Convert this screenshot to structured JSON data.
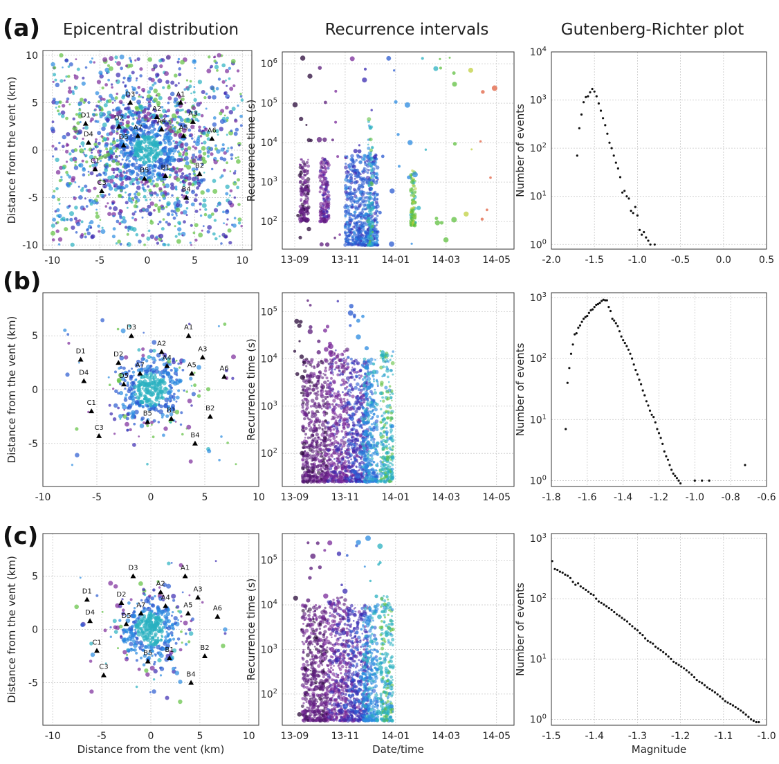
{
  "column_titles": [
    "Epicentral distribution",
    "Recurrence intervals",
    "Gutenberg-Richter plot"
  ],
  "row_labels": [
    "(a)",
    "(b)",
    "(c)"
  ],
  "chart_data": [
    {
      "panel": "a-epicentral",
      "type": "scatter",
      "xlabel": "",
      "ylabel": "Distance from the vent (km)",
      "xlim": [
        -11,
        11
      ],
      "ylim": [
        -10.5,
        10.5
      ],
      "xticks": [
        "-10",
        "-5",
        "0",
        "5",
        "10"
      ],
      "yticks": [
        "10",
        "5",
        "0",
        "-5",
        "-10"
      ],
      "points_note": "several thousand colored epicenter markers clustered around (0, 0), spread over the full ±10 km window"
    },
    {
      "panel": "a-recurrence",
      "type": "scatter",
      "xlabel": "",
      "ylabel": "Recurrence time (s)",
      "log_y": true,
      "xticks": [
        "13-09",
        "13-11",
        "14-01",
        "14-03",
        "14-05"
      ],
      "yticks": [
        "10^6",
        "10^5",
        "10^4",
        "10^3",
        "10^2"
      ]
    },
    {
      "panel": "a-gutenberg",
      "type": "scatter",
      "xlabel": "",
      "ylabel": "Number of events",
      "log_y": true,
      "xlim": [
        -2.0,
        0.5
      ],
      "ylim": [
        0.8,
        10000
      ],
      "xticks": [
        "-2.0",
        "-1.5",
        "-1.0",
        "-0.5",
        "0.0",
        "0.5"
      ],
      "yticks": [
        "10^4",
        "10^3",
        "10^2",
        "10^1",
        "10^0"
      ],
      "points": [
        [
          -1.7,
          70
        ],
        [
          -1.675,
          260
        ],
        [
          -1.65,
          500
        ],
        [
          -1.625,
          900
        ],
        [
          -1.6,
          1150
        ],
        [
          -1.575,
          1200
        ],
        [
          -1.55,
          1450
        ],
        [
          -1.525,
          1700
        ],
        [
          -1.5,
          1500
        ],
        [
          -1.475,
          1200
        ],
        [
          -1.45,
          850
        ],
        [
          -1.425,
          600
        ],
        [
          -1.4,
          420
        ],
        [
          -1.375,
          300
        ],
        [
          -1.35,
          200
        ],
        [
          -1.325,
          130
        ],
        [
          -1.3,
          100
        ],
        [
          -1.275,
          70
        ],
        [
          -1.25,
          50
        ],
        [
          -1.225,
          38
        ],
        [
          -1.2,
          25
        ],
        [
          -1.175,
          12
        ],
        [
          -1.15,
          13
        ],
        [
          -1.125,
          10
        ],
        [
          -1.1,
          9
        ],
        [
          -1.075,
          5
        ],
        [
          -1.05,
          4.5
        ],
        [
          -1.025,
          6
        ],
        [
          -1.0,
          4
        ],
        [
          -0.975,
          2
        ],
        [
          -0.95,
          1.6
        ],
        [
          -0.925,
          1.8
        ],
        [
          -0.9,
          1.4
        ],
        [
          -0.875,
          1.2
        ],
        [
          -0.85,
          1.0
        ],
        [
          -0.8,
          1.0
        ]
      ]
    },
    {
      "panel": "b-epicentral",
      "type": "scatter",
      "xlabel": "",
      "ylabel": "Distance from the vent (km)",
      "xlim": [
        -10,
        10
      ],
      "ylim": [
        -9,
        9
      ],
      "xticks": [
        "-10",
        "-5",
        "0",
        "5",
        "10"
      ],
      "yticks": [
        "5",
        "0",
        "-5"
      ]
    },
    {
      "panel": "b-recurrence",
      "type": "scatter",
      "xlabel": "",
      "ylabel": "Recurrence time (s)",
      "log_y": true,
      "xticks": [
        "13-09",
        "13-11",
        "14-01",
        "14-03",
        "14-05"
      ],
      "yticks": [
        "10^5",
        "10^4",
        "10^3",
        "10^2"
      ]
    },
    {
      "panel": "b-gutenberg",
      "type": "scatter",
      "xlabel": "",
      "ylabel": "Number of events",
      "log_y": true,
      "xlim": [
        -1.8,
        -0.6
      ],
      "ylim": [
        0.8,
        1200
      ],
      "xticks": [
        "-1.8",
        "-1.6",
        "-1.4",
        "-1.2",
        "-1.0",
        "-0.8",
        "-0.6"
      ],
      "yticks": [
        "10^3",
        "10^2",
        "10^1",
        "10^0"
      ],
      "points": [
        [
          -1.72,
          7
        ],
        [
          -1.71,
          40
        ],
        [
          -1.7,
          70
        ],
        [
          -1.69,
          120
        ],
        [
          -1.68,
          170
        ],
        [
          -1.67,
          250
        ],
        [
          -1.66,
          260
        ],
        [
          -1.65,
          320
        ],
        [
          -1.64,
          350
        ],
        [
          -1.63,
          400
        ],
        [
          -1.62,
          450
        ],
        [
          -1.61,
          480
        ],
        [
          -1.6,
          500
        ],
        [
          -1.59,
          560
        ],
        [
          -1.58,
          620
        ],
        [
          -1.57,
          640
        ],
        [
          -1.56,
          700
        ],
        [
          -1.55,
          760
        ],
        [
          -1.54,
          780
        ],
        [
          -1.53,
          820
        ],
        [
          -1.52,
          880
        ],
        [
          -1.51,
          920
        ],
        [
          -1.5,
          900
        ],
        [
          -1.49,
          900
        ],
        [
          -1.48,
          700
        ],
        [
          -1.47,
          600
        ],
        [
          -1.46,
          450
        ],
        [
          -1.45,
          420
        ],
        [
          -1.44,
          380
        ],
        [
          -1.43,
          340
        ],
        [
          -1.42,
          280
        ],
        [
          -1.41,
          230
        ],
        [
          -1.4,
          200
        ],
        [
          -1.39,
          180
        ],
        [
          -1.38,
          160
        ],
        [
          -1.37,
          140
        ],
        [
          -1.36,
          120
        ],
        [
          -1.35,
          100
        ],
        [
          -1.34,
          80
        ],
        [
          -1.33,
          65
        ],
        [
          -1.32,
          55
        ],
        [
          -1.31,
          45
        ],
        [
          -1.3,
          38
        ],
        [
          -1.29,
          30
        ],
        [
          -1.28,
          25
        ],
        [
          -1.27,
          20
        ],
        [
          -1.26,
          17
        ],
        [
          -1.25,
          14
        ],
        [
          -1.24,
          12
        ],
        [
          -1.23,
          11
        ],
        [
          -1.22,
          9
        ],
        [
          -1.21,
          7
        ],
        [
          -1.2,
          6
        ],
        [
          -1.19,
          5
        ],
        [
          -1.18,
          4
        ],
        [
          -1.17,
          3
        ],
        [
          -1.16,
          2.5
        ],
        [
          -1.15,
          2.2
        ],
        [
          -1.14,
          1.8
        ],
        [
          -1.13,
          1.5
        ],
        [
          -1.12,
          1.3
        ],
        [
          -1.11,
          1.2
        ],
        [
          -1.1,
          1.1
        ],
        [
          -1.09,
          1.0
        ],
        [
          -1.08,
          0.9
        ],
        [
          -1.0,
          1.0
        ],
        [
          -0.96,
          1.0
        ],
        [
          -0.92,
          1.0
        ],
        [
          -0.72,
          1.8
        ]
      ]
    },
    {
      "panel": "c-epicentral",
      "type": "scatter",
      "xlabel": "Distance from the vent (km)",
      "ylabel": "Distance from the vent (km)",
      "xlim": [
        -11,
        11
      ],
      "ylim": [
        -9,
        9
      ],
      "xticks": [
        "-10",
        "-5",
        "0",
        "5",
        "10"
      ],
      "yticks": [
        "5",
        "0",
        "-5"
      ]
    },
    {
      "panel": "c-recurrence",
      "type": "scatter",
      "xlabel": "Date/time",
      "ylabel": "Recurrence time (s)",
      "log_y": true,
      "xticks": [
        "13-09",
        "13-11",
        "14-01",
        "14-03",
        "14-05"
      ],
      "yticks": [
        "10^5",
        "10^4",
        "10^3",
        "10^2"
      ]
    },
    {
      "panel": "c-gutenberg",
      "type": "scatter",
      "xlabel": "Magnitude",
      "ylabel": "Number of events",
      "log_y": true,
      "xlim": [
        -1.5,
        -1.0
      ],
      "ylim": [
        0.8,
        1200
      ],
      "xticks": [
        "-1.5",
        "-1.4",
        "-1.3",
        "-1.2",
        "-1.1",
        "-1.0"
      ],
      "yticks": [
        "10^3",
        "10^2",
        "10^1",
        "10^0"
      ],
      "points": [
        [
          -1.498,
          420
        ],
        [
          -1.492,
          310
        ],
        [
          -1.486,
          300
        ],
        [
          -1.48,
          280
        ],
        [
          -1.474,
          270
        ],
        [
          -1.468,
          250
        ],
        [
          -1.462,
          240
        ],
        [
          -1.456,
          220
        ],
        [
          -1.45,
          190
        ],
        [
          -1.444,
          170
        ],
        [
          -1.438,
          180
        ],
        [
          -1.432,
          160
        ],
        [
          -1.426,
          150
        ],
        [
          -1.42,
          140
        ],
        [
          -1.414,
          130
        ],
        [
          -1.408,
          120
        ],
        [
          -1.402,
          115
        ],
        [
          -1.396,
          100
        ],
        [
          -1.39,
          90
        ],
        [
          -1.384,
          85
        ],
        [
          -1.378,
          80
        ],
        [
          -1.372,
          75
        ],
        [
          -1.366,
          70
        ],
        [
          -1.36,
          65
        ],
        [
          -1.354,
          60
        ],
        [
          -1.348,
          55
        ],
        [
          -1.342,
          52
        ],
        [
          -1.336,
          48
        ],
        [
          -1.33,
          45
        ],
        [
          -1.324,
          42
        ],
        [
          -1.318,
          38
        ],
        [
          -1.312,
          35
        ],
        [
          -1.306,
          32
        ],
        [
          -1.3,
          30
        ],
        [
          -1.294,
          27
        ],
        [
          -1.288,
          25
        ],
        [
          -1.282,
          22
        ],
        [
          -1.276,
          20
        ],
        [
          -1.27,
          19
        ],
        [
          -1.264,
          18
        ],
        [
          -1.258,
          16
        ],
        [
          -1.252,
          15
        ],
        [
          -1.246,
          14
        ],
        [
          -1.24,
          13
        ],
        [
          -1.234,
          12
        ],
        [
          -1.228,
          11
        ],
        [
          -1.222,
          10
        ],
        [
          -1.216,
          9
        ],
        [
          -1.21,
          8.5
        ],
        [
          -1.204,
          8
        ],
        [
          -1.198,
          7.5
        ],
        [
          -1.192,
          7
        ],
        [
          -1.186,
          6.5
        ],
        [
          -1.18,
          6
        ],
        [
          -1.174,
          5.5
        ],
        [
          -1.168,
          5
        ],
        [
          -1.162,
          4.5
        ],
        [
          -1.156,
          4.2
        ],
        [
          -1.15,
          4
        ],
        [
          -1.144,
          3.7
        ],
        [
          -1.138,
          3.4
        ],
        [
          -1.132,
          3.2
        ],
        [
          -1.126,
          3
        ],
        [
          -1.12,
          2.8
        ],
        [
          -1.114,
          2.6
        ],
        [
          -1.108,
          2.4
        ],
        [
          -1.102,
          2.2
        ],
        [
          -1.096,
          2
        ],
        [
          -1.09,
          1.9
        ],
        [
          -1.084,
          1.8
        ],
        [
          -1.078,
          1.7
        ],
        [
          -1.072,
          1.6
        ],
        [
          -1.066,
          1.5
        ],
        [
          -1.06,
          1.4
        ],
        [
          -1.054,
          1.3
        ],
        [
          -1.048,
          1.2
        ],
        [
          -1.042,
          1.1
        ],
        [
          -1.036,
          1.0
        ],
        [
          -1.03,
          0.95
        ],
        [
          -1.024,
          0.9
        ],
        [
          -1.018,
          0.9
        ]
      ]
    }
  ],
  "station_labels": [
    "A1",
    "A2",
    "A3",
    "A4",
    "A5",
    "A6",
    "A7",
    "B1",
    "B2",
    "B4",
    "B5",
    "C1",
    "C3",
    "D1",
    "D2",
    "D3",
    "D4",
    "D5"
  ],
  "colors": {
    "frame": "#333333",
    "grid": "#c8c8c8",
    "series": [
      "#2a0a3a",
      "#5a1a7a",
      "#7a2a9a",
      "#3a2ab0",
      "#2a5ad0",
      "#2a8ae0",
      "#2ab0c0",
      "#60c040",
      "#c0d040",
      "#e06040"
    ]
  }
}
